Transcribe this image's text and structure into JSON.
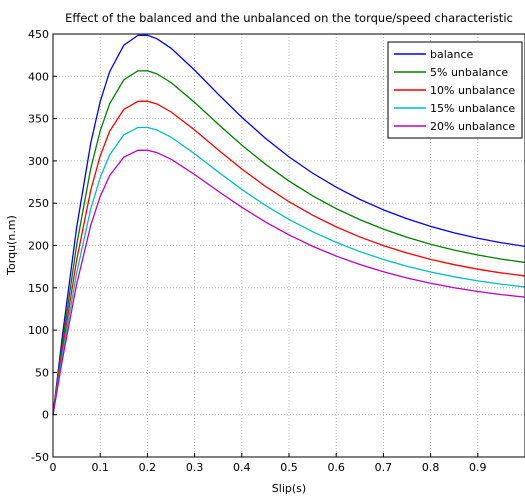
{
  "chart_data": {
    "type": "line",
    "title": "Effect of the balanced and the unbalanced on the torque/speed characteristic",
    "xlabel": "Slip(s)",
    "ylabel": "Torqu(n.m)",
    "xlim": [
      0,
      1
    ],
    "ylim": [
      -50,
      450
    ],
    "xticks": [
      "0",
      "0.1",
      "0.2",
      "0.3",
      "0.4",
      "0.5",
      "0.6",
      "0.7",
      "0.8",
      "0.9"
    ],
    "yticks": [
      "-50",
      "0",
      "50",
      "100",
      "150",
      "200",
      "250",
      "300",
      "350",
      "400",
      "450"
    ],
    "grid": true,
    "legend_position": "top-right",
    "x": [
      0,
      0.02,
      0.05,
      0.08,
      0.1,
      0.12,
      0.15,
      0.18,
      0.2,
      0.22,
      0.25,
      0.3,
      0.35,
      0.4,
      0.45,
      0.5,
      0.55,
      0.6,
      0.65,
      0.7,
      0.75,
      0.8,
      0.85,
      0.9,
      0.95,
      1.0
    ],
    "series": [
      {
        "name": "balance",
        "color": "#0000ff",
        "peak": 449,
        "end": 199
      },
      {
        "name": "5% unbalance",
        "color": "#008000",
        "peak": 407,
        "end": 180
      },
      {
        "name": "10% unbalance",
        "color": "#ff0000",
        "peak": 371,
        "end": 164
      },
      {
        "name": "15% unbalance",
        "color": "#00bfbf",
        "peak": 340,
        "end": 151
      },
      {
        "name": "20% unbalance",
        "color": "#bf00bf",
        "peak": 313,
        "end": 139
      }
    ]
  }
}
